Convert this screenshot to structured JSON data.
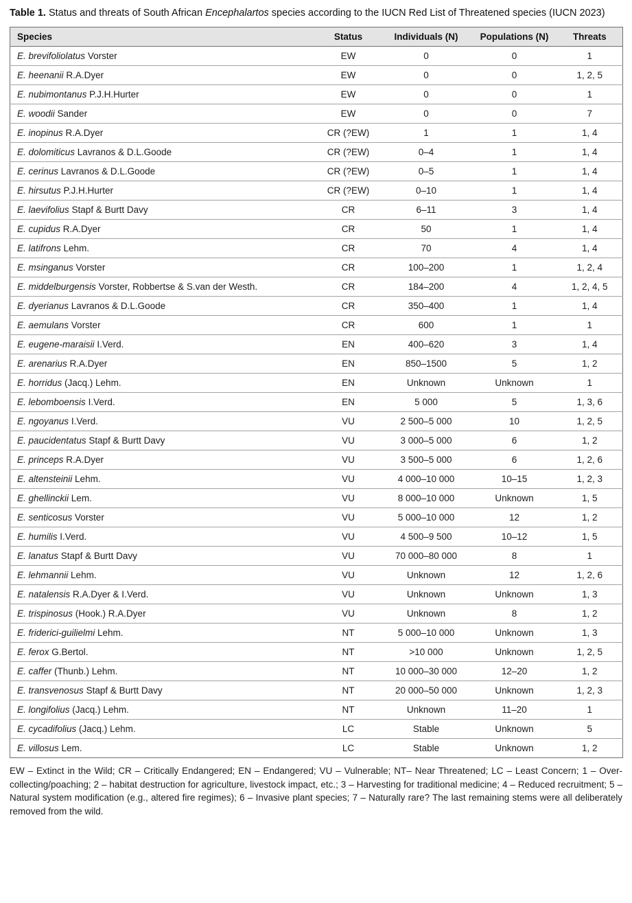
{
  "caption": {
    "label": "Table 1.",
    "before_italic": " Status and threats of South African ",
    "genus": "Encephalartos",
    "after_italic": " species according to the IUCN Red List of Threatened species (IUCN 2023)"
  },
  "table": {
    "columns": [
      "Species",
      "Status",
      "Individuals (N)",
      "Populations (N)",
      "Threats"
    ],
    "rows": [
      {
        "species": "E. brevifoliolatus",
        "author": "Vorster",
        "status": "EW",
        "individuals": "0",
        "populations": "0",
        "threats": "1"
      },
      {
        "species": "E. heenanii",
        "author": "R.A.Dyer",
        "status": "EW",
        "individuals": "0",
        "populations": "0",
        "threats": "1, 2, 5"
      },
      {
        "species": "E. nubimontanus",
        "author": "P.J.H.Hurter",
        "status": "EW",
        "individuals": "0",
        "populations": "0",
        "threats": "1"
      },
      {
        "species": "E. woodii",
        "author": "Sander",
        "status": "EW",
        "individuals": "0",
        "populations": "0",
        "threats": "7"
      },
      {
        "species": "E. inopinus",
        "author": "R.A.Dyer",
        "status": "CR (?EW)",
        "individuals": "1",
        "populations": "1",
        "threats": "1, 4"
      },
      {
        "species": "E. dolomiticus",
        "author": "Lavranos & D.L.Goode",
        "status": "CR (?EW)",
        "individuals": "0–4",
        "populations": "1",
        "threats": "1, 4"
      },
      {
        "species": "E. cerinus",
        "author": "Lavranos & D.L.Goode",
        "status": "CR (?EW)",
        "individuals": "0–5",
        "populations": "1",
        "threats": "1, 4"
      },
      {
        "species": "E. hirsutus",
        "author": "P.J.H.Hurter",
        "status": "CR (?EW)",
        "individuals": "0–10",
        "populations": "1",
        "threats": "1, 4"
      },
      {
        "species": "E. laevifolius",
        "author": "Stapf & Burtt Davy",
        "status": "CR",
        "individuals": "6–11",
        "populations": "3",
        "threats": "1, 4"
      },
      {
        "species": "E. cupidus",
        "author": "R.A.Dyer",
        "status": "CR",
        "individuals": "50",
        "populations": "1",
        "threats": "1, 4"
      },
      {
        "species": "E. latifrons",
        "author": "Lehm.",
        "status": "CR",
        "individuals": "70",
        "populations": "4",
        "threats": "1, 4"
      },
      {
        "species": "E. msinganus",
        "author": "Vorster",
        "status": "CR",
        "individuals": "100–200",
        "populations": "1",
        "threats": "1, 2, 4"
      },
      {
        "species": "E. middelburgensis",
        "author": "Vorster, Robbertse & S.van der Westh.",
        "status": "CR",
        "individuals": "184–200",
        "populations": "4",
        "threats": "1, 2, 4, 5"
      },
      {
        "species": "E. dyerianus",
        "author": "Lavranos & D.L.Goode",
        "status": "CR",
        "individuals": "350–400",
        "populations": "1",
        "threats": "1, 4"
      },
      {
        "species": "E. aemulans",
        "author": "Vorster",
        "status": "CR",
        "individuals": "600",
        "populations": "1",
        "threats": "1"
      },
      {
        "species": "E. eugene-maraisii",
        "author": "I.Verd.",
        "status": "EN",
        "individuals": "400–620",
        "populations": "3",
        "threats": "1, 4"
      },
      {
        "species": "E. arenarius",
        "author": "R.A.Dyer",
        "status": "EN",
        "individuals": "850–1500",
        "populations": "5",
        "threats": "1, 2"
      },
      {
        "species": "E. horridus",
        "author": "(Jacq.) Lehm.",
        "status": "EN",
        "individuals": "Unknown",
        "populations": "Unknown",
        "threats": "1"
      },
      {
        "species": "E. lebomboensis",
        "author": "I.Verd.",
        "status": "EN",
        "individuals": "5 000",
        "populations": "5",
        "threats": "1, 3, 6"
      },
      {
        "species": "E. ngoyanus",
        "author": "I.Verd.",
        "status": "VU",
        "individuals": "2 500–5 000",
        "populations": "10",
        "threats": "1, 2, 5"
      },
      {
        "species": "E. paucidentatus",
        "author": "Stapf & Burtt Davy",
        "status": "VU",
        "individuals": "3 000–5 000",
        "populations": "6",
        "threats": "1, 2"
      },
      {
        "species": "E. princeps",
        "author": "R.A.Dyer",
        "status": "VU",
        "individuals": "3 500–5 000",
        "populations": "6",
        "threats": "1, 2, 6"
      },
      {
        "species": "E. altensteinii",
        "author": "Lehm.",
        "status": "VU",
        "individuals": "4 000–10 000",
        "populations": "10–15",
        "threats": "1, 2, 3"
      },
      {
        "species": "E. ghellinckii",
        "author": "Lem.",
        "status": "VU",
        "individuals": "8 000–10 000",
        "populations": "Unknown",
        "threats": "1, 5"
      },
      {
        "species": "E. senticosus",
        "author": "Vorster",
        "status": "VU",
        "individuals": "5 000–10 000",
        "populations": "12",
        "threats": "1, 2"
      },
      {
        "species": "E. humilis",
        "author": "I.Verd.",
        "status": "VU",
        "individuals": "4 500–9 500",
        "populations": "10–12",
        "threats": "1, 5"
      },
      {
        "species": "E. lanatus",
        "author": "Stapf & Burtt Davy",
        "status": "VU",
        "individuals": "70 000–80 000",
        "populations": "8",
        "threats": "1"
      },
      {
        "species": "E. lehmannii",
        "author": "Lehm.",
        "status": "VU",
        "individuals": "Unknown",
        "populations": "12",
        "threats": "1, 2, 6"
      },
      {
        "species": "E. natalensis",
        "author": "R.A.Dyer & I.Verd.",
        "status": "VU",
        "individuals": "Unknown",
        "populations": "Unknown",
        "threats": "1, 3"
      },
      {
        "species": "E. trispinosus",
        "author": "(Hook.) R.A.Dyer",
        "status": "VU",
        "individuals": "Unknown",
        "populations": "8",
        "threats": "1, 2"
      },
      {
        "species": "E. friderici-guilielmi",
        "author": "Lehm.",
        "status": "NT",
        "individuals": "5 000–10 000",
        "populations": "Unknown",
        "threats": "1, 3"
      },
      {
        "species": "E. ferox",
        "author": "G.Bertol.",
        "status": "NT",
        "individuals": ">10 000",
        "populations": "Unknown",
        "threats": "1, 2, 5"
      },
      {
        "species": "E. caffer",
        "author": "(Thunb.) Lehm.",
        "status": "NT",
        "individuals": "10 000–30 000",
        "populations": "12–20",
        "threats": "1, 2"
      },
      {
        "species": "E. transvenosus",
        "author": "Stapf & Burtt Davy",
        "status": "NT",
        "individuals": "20 000–50 000",
        "populations": "Unknown",
        "threats": "1, 2, 3"
      },
      {
        "species": "E. longifolius",
        "author": "(Jacq.) Lehm.",
        "status": "NT",
        "individuals": "Unknown",
        "populations": "11–20",
        "threats": "1"
      },
      {
        "species": "E. cycadifolius",
        "author": "(Jacq.) Lehm.",
        "status": "LC",
        "individuals": "Stable",
        "populations": "Unknown",
        "threats": "5"
      },
      {
        "species": "E. villosus",
        "author": "Lem.",
        "status": "LC",
        "individuals": "Stable",
        "populations": "Unknown",
        "threats": "1, 2"
      }
    ]
  },
  "footnote": "EW – Extinct in the Wild; CR – Critically Endangered; EN – Endangered; VU – Vulnerable; NT– Near Threatened; LC – Least Concern; 1 – Over-collecting/poaching; 2 – habitat destruction for agriculture, livestock impact, etc.; 3 – Harvesting for traditional medicine; 4 – Reduced recruitment; 5 – Natural system modification (e.g., altered fire regimes); 6 – Invasive plant species; 7 – Naturally rare? The last remaining stems were all deliberately removed from the wild."
}
